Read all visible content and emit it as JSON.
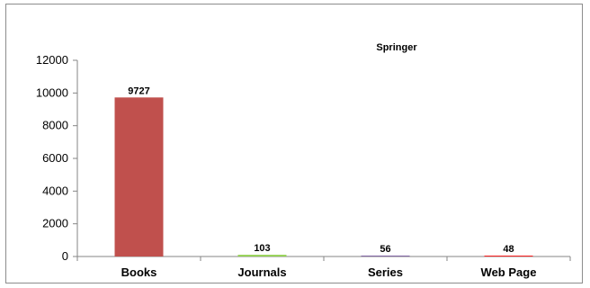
{
  "chart_data": {
    "type": "bar",
    "title": "Springer",
    "categories": [
      "Books",
      "Journals",
      "Series",
      "Web Page"
    ],
    "values": [
      9727,
      103,
      56,
      48
    ],
    "data_labels": [
      "9727",
      "103",
      "56",
      "48"
    ],
    "bar_colors": [
      "#C0504D",
      "#92D050",
      "#8064A2",
      "#FF0000"
    ],
    "ylim": [
      0,
      12000
    ],
    "yticks": [
      "0",
      "2000",
      "4000",
      "6000",
      "8000",
      "10000",
      "12000"
    ],
    "grid": false,
    "legend": "none",
    "xlabel": "",
    "ylabel": ""
  }
}
